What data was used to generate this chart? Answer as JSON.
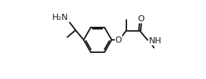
{
  "bg": "#ffffff",
  "lc": "#1a1a1a",
  "tc": "#1a1a1a",
  "lw": 1.5,
  "fa": 9.0,
  "fs": 7.5,
  "figsize": [
    3.0,
    1.16
  ],
  "dpi": 100,
  "xlim": [
    0,
    3.0
  ],
  "ylim": [
    0,
    1.16
  ]
}
